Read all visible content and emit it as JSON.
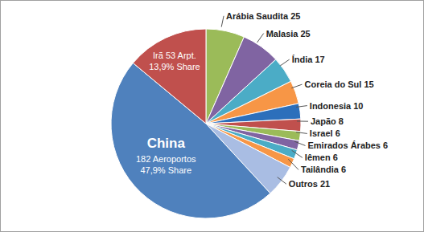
{
  "chart_data": {
    "type": "pie",
    "categories": [
      "Arábia Saudita",
      "Malasia",
      "Índia",
      "Coreia do Sul",
      "Indonesia",
      "Japão",
      "Israel",
      "Emirados Árabes",
      "Iêmen",
      "Tailândia",
      "Outros",
      "China",
      "Irã"
    ],
    "values": [
      25,
      25,
      17,
      15,
      10,
      8,
      6,
      6,
      6,
      6,
      21,
      182,
      53
    ],
    "colors": [
      "#9bbb59",
      "#8064a2",
      "#4bacc6",
      "#f79646",
      "#2c6fbb",
      "#c0504d",
      "#9bbb59",
      "#8064a2",
      "#4bacc6",
      "#f79646",
      "#a9bde3",
      "#4f81bd",
      "#c0504d"
    ],
    "data_labels": true,
    "value_labels": [
      [
        "Arábia Saudita 25"
      ],
      [
        "Malasia 25"
      ],
      [
        "Índia 17"
      ],
      [
        "Coreia do Sul 15"
      ],
      [
        "Indonesia 10"
      ],
      [
        "Japão 8"
      ],
      [
        "Israel 6"
      ],
      [
        "Emirados Árabes 6"
      ],
      [
        "Iêmen 6"
      ],
      [
        "Tailândia 6"
      ],
      [
        "Outros 21"
      ],
      [
        "China",
        "182 Aeroportos",
        "47,9% Share"
      ],
      [
        "Irã 53 Arpt.",
        "13,9% Share"
      ]
    ]
  }
}
